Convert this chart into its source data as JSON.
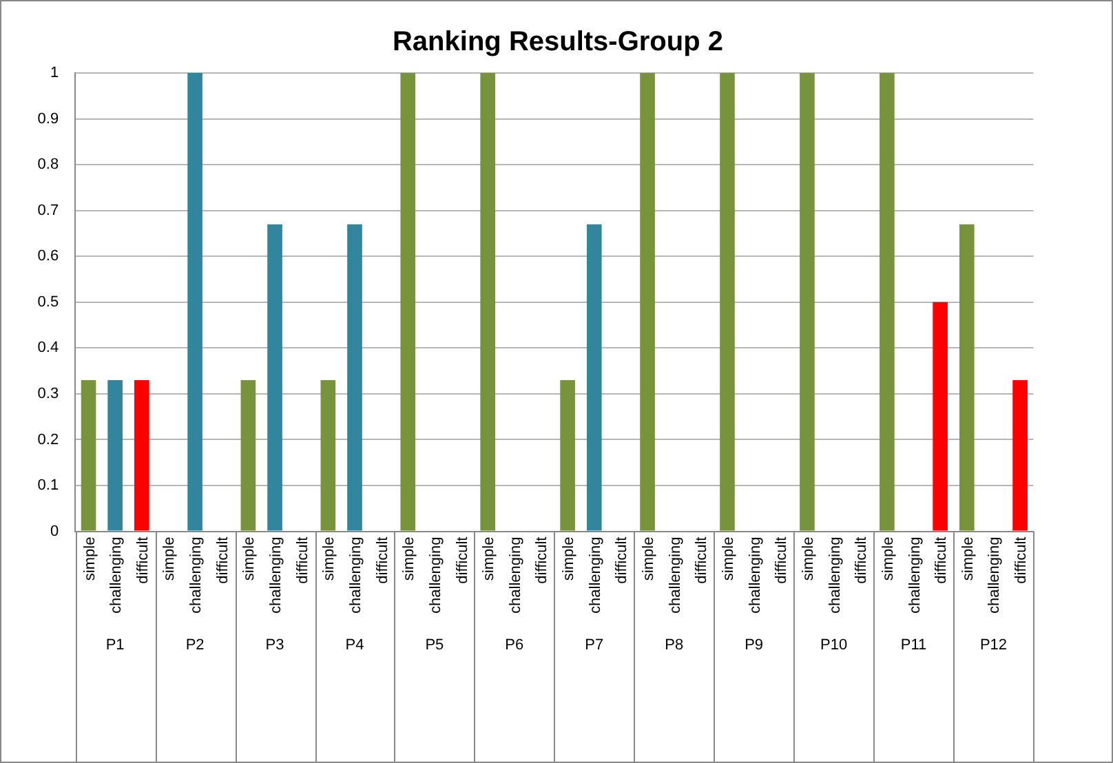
{
  "chart_data": {
    "type": "bar",
    "title": "Ranking Results-Group 2",
    "categories": [
      "P1",
      "P2",
      "P3",
      "P4",
      "P5",
      "P6",
      "P7",
      "P8",
      "P9",
      "P10",
      "P11",
      "P12"
    ],
    "series": [
      {
        "name": "simple",
        "color": "#77933c",
        "values": [
          0.33,
          0,
          0.33,
          0.33,
          1,
          1,
          0.33,
          1,
          1,
          1,
          1,
          0.67
        ]
      },
      {
        "name": "challenging",
        "color": "#31859c",
        "values": [
          0.33,
          1,
          0.67,
          0.67,
          0,
          0,
          0.67,
          0,
          0,
          0,
          0,
          0
        ]
      },
      {
        "name": "difficult",
        "color": "#ff0000",
        "values": [
          0.33,
          0,
          0,
          0,
          0,
          0,
          0,
          0,
          0,
          0,
          0.5,
          0.33
        ]
      }
    ],
    "ylim": [
      0,
      1
    ],
    "yticks": [
      0,
      0.1,
      0.2,
      0.3,
      0.4,
      0.5,
      0.6,
      0.7,
      0.8,
      0.9,
      1
    ],
    "grid": "y",
    "legend": false
  }
}
